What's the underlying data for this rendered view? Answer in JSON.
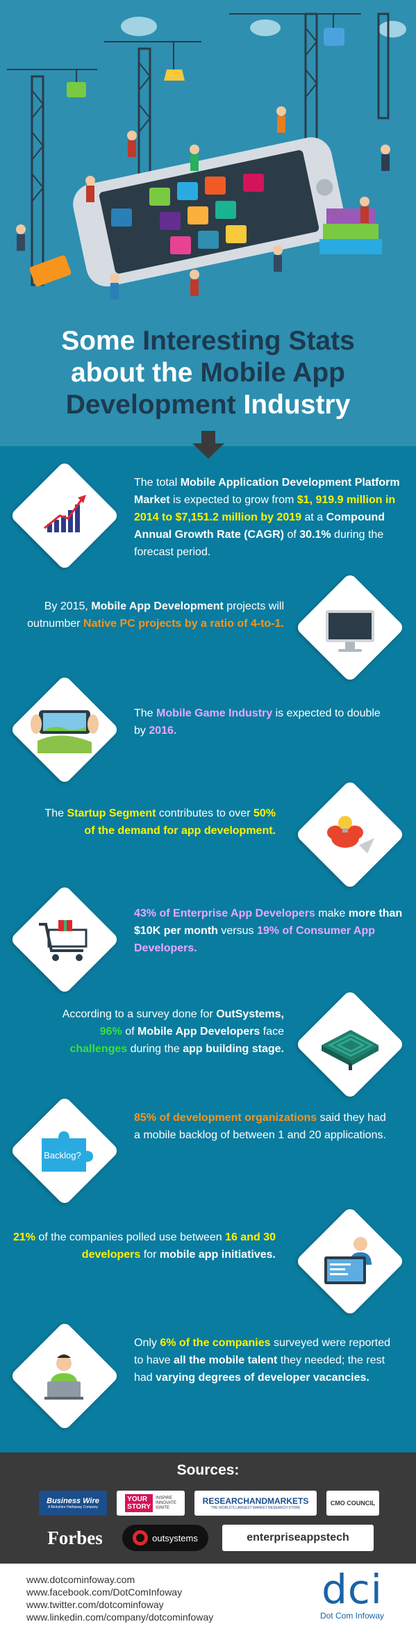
{
  "hero": {
    "title_line1_plain": "Some ",
    "title_line1_hl": "Interesting Stats",
    "title_line2_plain": "about the ",
    "title_line2_hl": "Mobile App",
    "title_line3_hl": "Development",
    "title_line3_plain": " Industry"
  },
  "stats": [
    {
      "icon": "growth-chart-icon",
      "t1": "The total ",
      "b1": "Mobile Application Development Platform Market",
      "t2": " is expected to grow from ",
      "y1": "$1, 919.9 million in 2014 to $7,151.2 million by 2019",
      "t3": " at a ",
      "b2": "Compound Annual Growth Rate (CAGR)",
      "t4": " of ",
      "b3": "30.1%",
      "t5": " during the forecast period."
    },
    {
      "icon": "desktop-monitor-icon",
      "t1": "By 2015, ",
      "b1": "Mobile App Development",
      "t2": " projects will outnumber ",
      "o1": "Native PC projects by a ratio of 4-to-1."
    },
    {
      "icon": "mobile-game-icon",
      "t1": "The ",
      "p1": "Mobile Game Industry",
      "t2": " is expected to double by ",
      "p2": "2016."
    },
    {
      "icon": "lightbulb-idea-icon",
      "t1": "The ",
      "y1": "Startup Segment",
      "t2": " contributes to over ",
      "y2": "50%",
      "b1": "of the demand for app development."
    },
    {
      "icon": "shopping-cart-icon",
      "p1": "43% of Enterprise App Developers",
      "t1": " make ",
      "b1": "more than $10K per month",
      "t2": " versus ",
      "p2": "19% of  Consumer App Developers."
    },
    {
      "icon": "maze-icon",
      "t1": "According to a survey done for ",
      "b1": "OutSystems,",
      "g1": "96%",
      "t2": " of ",
      "b2": "Mobile App Developers",
      "t3": " face ",
      "g2": "challenges",
      "t4": " during the ",
      "b3": "app building stage."
    },
    {
      "icon": "puzzle-backlog-icon",
      "icon_label": "Backlog?",
      "o1": "85% of development organizations",
      "t1": " said they had a mobile backlog of between 1 and 20 applications."
    },
    {
      "icon": "developer-computer-icon",
      "y1": "21%",
      "t1": " of the companies polled use between ",
      "y2": "16 and 30 developers",
      "t2": " for ",
      "b1": "mobile app initiatives."
    },
    {
      "icon": "developer-laptop-icon",
      "t1": "Only ",
      "y1": "6% of the companies",
      "t2": " surveyed were reported to have ",
      "b1": "all the mobile talent",
      "t3": " they needed; the rest had ",
      "b2": "varying degrees of developer vacancies."
    }
  ],
  "sources": {
    "title": "Sources:",
    "logos": [
      {
        "name": "Business Wire",
        "sub": "A Berkshire Hathaway Company"
      },
      {
        "name_a": "YOUR",
        "name_b": "STORY",
        "tag": "INSPIRE\nINNOVATE\nIGNITE"
      },
      {
        "name": "RESEARCHANDMARKETS",
        "sub": "THE WORLD'S LARGEST MARKET RESEARCH STORE"
      },
      {
        "name": "CMO COUNCIL"
      },
      {
        "name": "Forbes"
      },
      {
        "name": "outsystems"
      },
      {
        "name": "enterpriseappstech"
      }
    ]
  },
  "footer": {
    "links": [
      "www.dotcominfoway.com",
      "www.facebook.com/DotComInfoway",
      "www.twitter.com/dotcominfoway",
      "www.linkedin.com/company/dotcominfoway"
    ],
    "brand_mark": "dci",
    "brand_name": "Dot Com Infoway"
  }
}
